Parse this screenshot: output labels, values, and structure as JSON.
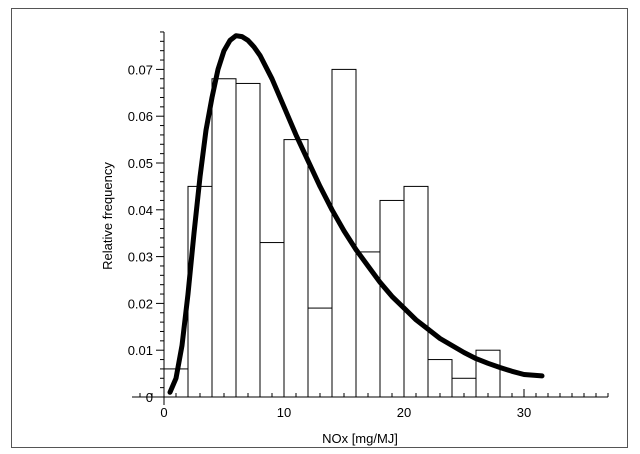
{
  "chart_data": {
    "type": "bar",
    "title": "",
    "xlabel": "NOx [mg/MJ]",
    "ylabel": "Relative frequency",
    "xlim": [
      0,
      37
    ],
    "ylim": [
      0,
      0.078
    ],
    "x_ticks": [
      0,
      10,
      20,
      30
    ],
    "y_ticks": [
      0,
      0.01,
      0.02,
      0.03,
      0.04,
      0.05,
      0.06,
      0.07
    ],
    "y_tick_labels": [
      "0",
      "0.01",
      "0.02",
      "0.03",
      "0.04",
      "0.05",
      "0.06",
      "0.07"
    ],
    "x_tick_labels": [
      "0",
      "10",
      "20",
      "30"
    ],
    "grid": false,
    "bins": [
      {
        "x0": 0,
        "x1": 2,
        "value": 0.006
      },
      {
        "x0": 2,
        "x1": 4,
        "value": 0.045
      },
      {
        "x0": 4,
        "x1": 6,
        "value": 0.068
      },
      {
        "x0": 6,
        "x1": 8,
        "value": 0.067
      },
      {
        "x0": 8,
        "x1": 10,
        "value": 0.033
      },
      {
        "x0": 10,
        "x1": 12,
        "value": 0.055
      },
      {
        "x0": 12,
        "x1": 14,
        "value": 0.019
      },
      {
        "x0": 14,
        "x1": 16,
        "value": 0.07
      },
      {
        "x0": 16,
        "x1": 18,
        "value": 0.031
      },
      {
        "x0": 18,
        "x1": 20,
        "value": 0.042
      },
      {
        "x0": 20,
        "x1": 22,
        "value": 0.045
      },
      {
        "x0": 22,
        "x1": 24,
        "value": 0.008
      },
      {
        "x0": 24,
        "x1": 26,
        "value": 0.004
      },
      {
        "x0": 26,
        "x1": 28,
        "value": 0.01
      }
    ],
    "curve": {
      "x": [
        0.5,
        1,
        1.5,
        2,
        2.5,
        3,
        3.5,
        4,
        4.5,
        5,
        5.5,
        6,
        6.5,
        7,
        7.5,
        8,
        9,
        10,
        11,
        12,
        13,
        14,
        15,
        16,
        17,
        18,
        19,
        20,
        21,
        22,
        23,
        24,
        25,
        26,
        27,
        28,
        29,
        30,
        31.5
      ],
      "y": [
        0.001,
        0.004,
        0.011,
        0.022,
        0.035,
        0.047,
        0.057,
        0.064,
        0.07,
        0.074,
        0.0762,
        0.0772,
        0.077,
        0.0762,
        0.0748,
        0.073,
        0.068,
        0.062,
        0.056,
        0.0505,
        0.045,
        0.04,
        0.0355,
        0.0315,
        0.028,
        0.0245,
        0.0215,
        0.019,
        0.0165,
        0.0145,
        0.0125,
        0.011,
        0.0095,
        0.0082,
        0.0072,
        0.0063,
        0.0055,
        0.0048,
        0.0045
      ]
    }
  }
}
